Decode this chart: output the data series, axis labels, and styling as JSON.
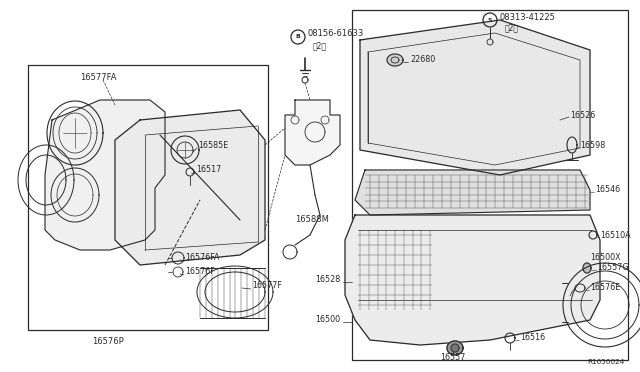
{
  "bg_color": "#ffffff",
  "line_color": "#2a2a2a",
  "label_color": "#2a2a2a",
  "diagram_number": "R1650024",
  "figsize": [
    6.4,
    3.72
  ],
  "dpi": 100,
  "xlim": [
    0,
    640
  ],
  "ylim": [
    0,
    372
  ]
}
